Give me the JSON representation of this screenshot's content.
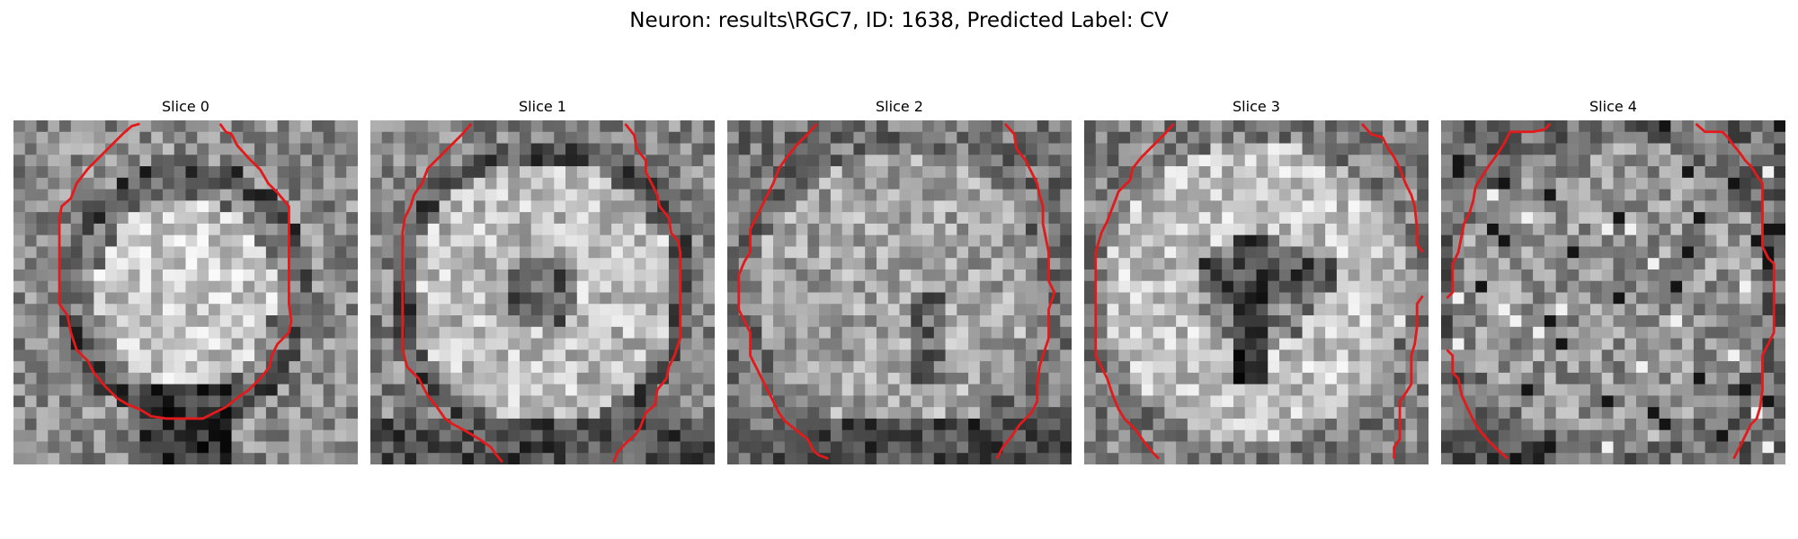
{
  "figure": {
    "title": "Neuron: results\\RGC7, ID: 1638, Predicted Label: CV"
  },
  "slices": [
    {
      "title": "Slice 0",
      "pattern": "disc-bright-center"
    },
    {
      "title": "Slice 1",
      "pattern": "ring-dark-center"
    },
    {
      "title": "Slice 2",
      "pattern": "uniform-mottled"
    },
    {
      "title": "Slice 3",
      "pattern": "ring-dark-cross"
    },
    {
      "title": "Slice 4",
      "pattern": "mottled-dark-spots"
    }
  ],
  "colors": {
    "background": "#ffffff",
    "contour": "#e31a1c"
  }
}
